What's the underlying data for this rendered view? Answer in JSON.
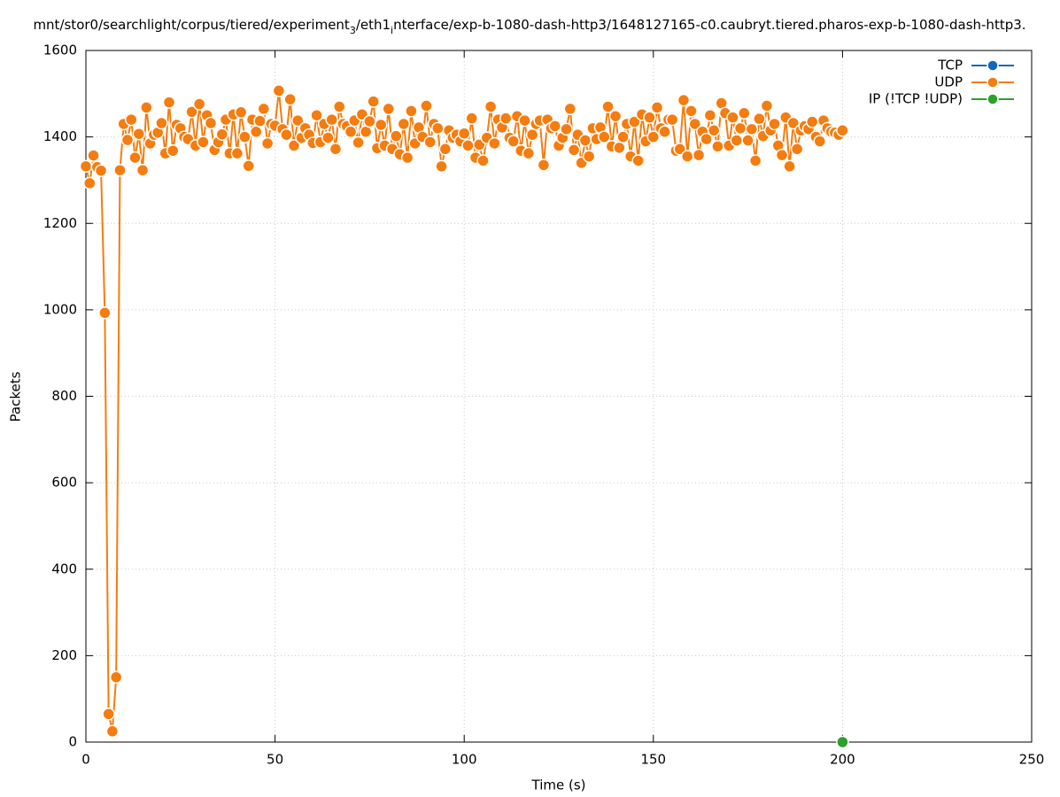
{
  "chart_data": {
    "type": "line",
    "title": [
      "mnt/stor0/searchlight/corpus/tiered/experiment",
      "3",
      "/eth1",
      "i",
      "nterface/exp-b-1080-dash-http3/1648127165-c0.caubryt.tiered.pharos-exp-b-1080-dash-http3."
    ],
    "xlabel": "Time (s)",
    "ylabel": "Packets",
    "xlim": [
      0,
      250
    ],
    "xticks": [
      0,
      50,
      100,
      150,
      200,
      250
    ],
    "ylim": [
      0,
      1600
    ],
    "yticks": [
      0,
      200,
      400,
      600,
      800,
      1000,
      1200,
      1400,
      1600
    ],
    "grid": true,
    "legend": "top-right",
    "series": [
      {
        "name": "TCP",
        "color": "#1565c0",
        "x": [],
        "values": []
      },
      {
        "name": "UDP",
        "color": "#f57c0e",
        "x": [
          0,
          1,
          2,
          3,
          4,
          5,
          6,
          7,
          8,
          9,
          10,
          11,
          12,
          13,
          14,
          15,
          16,
          17,
          18,
          19,
          20,
          21,
          22,
          23,
          24,
          25,
          26,
          27,
          28,
          29,
          30,
          31,
          32,
          33,
          34,
          35,
          36,
          37,
          38,
          39,
          40,
          41,
          42,
          43,
          44,
          45,
          46,
          47,
          48,
          49,
          50,
          51,
          52,
          53,
          54,
          55,
          56,
          57,
          58,
          59,
          60,
          61,
          62,
          63,
          64,
          65,
          66,
          67,
          68,
          69,
          70,
          71,
          72,
          73,
          74,
          75,
          76,
          77,
          78,
          79,
          80,
          81,
          82,
          83,
          84,
          85,
          86,
          87,
          88,
          89,
          90,
          91,
          92,
          93,
          94,
          95,
          96,
          97,
          98,
          99,
          100,
          101,
          102,
          103,
          104,
          105,
          106,
          107,
          108,
          109,
          110,
          111,
          112,
          113,
          114,
          115,
          116,
          117,
          118,
          119,
          120,
          121,
          122,
          123,
          124,
          125,
          126,
          127,
          128,
          129,
          130,
          131,
          132,
          133,
          134,
          135,
          136,
          137,
          138,
          139,
          140,
          141,
          142,
          143,
          144,
          145,
          146,
          147,
          148,
          149,
          150,
          151,
          152,
          153,
          154,
          155,
          156,
          157,
          158,
          159,
          160,
          161,
          162,
          163,
          164,
          165,
          166,
          167,
          168,
          169,
          170,
          171,
          172,
          173,
          174,
          175,
          176,
          177,
          178,
          179,
          180,
          181,
          182,
          183,
          184,
          185,
          186,
          187,
          188,
          189,
          190,
          191,
          192,
          193,
          194,
          195,
          196,
          197,
          198,
          199,
          200
        ],
        "values": [
          1332,
          1293,
          1357,
          1330,
          1322,
          993,
          65,
          25,
          150,
          1323,
          1430,
          1393,
          1440,
          1352,
          1407,
          1323,
          1468,
          1385,
          1405,
          1410,
          1432,
          1362,
          1480,
          1368,
          1428,
          1420,
          1400,
          1395,
          1458,
          1380,
          1476,
          1388,
          1450,
          1432,
          1370,
          1388,
          1406,
          1440,
          1362,
          1452,
          1362,
          1457,
          1400,
          1333,
          1440,
          1412,
          1437,
          1465,
          1385,
          1430,
          1426,
          1507,
          1418,
          1405,
          1487,
          1380,
          1438,
          1398,
          1420,
          1405,
          1386,
          1450,
          1388,
          1430,
          1398,
          1440,
          1372,
          1470,
          1430,
          1425,
          1412,
          1438,
          1387,
          1452,
          1412,
          1436,
          1482,
          1374,
          1428,
          1380,
          1465,
          1372,
          1402,
          1360,
          1430,
          1352,
          1460,
          1385,
          1422,
          1400,
          1472,
          1388,
          1430,
          1420,
          1332,
          1372,
          1415,
          1398,
          1405,
          1390,
          1408,
          1380,
          1443,
          1352,
          1382,
          1345,
          1398,
          1470,
          1385,
          1440,
          1422,
          1443,
          1398,
          1390,
          1448,
          1368,
          1438,
          1362,
          1405,
          1430,
          1438,
          1335,
          1440,
          1420,
          1425,
          1380,
          1398,
          1418,
          1465,
          1370,
          1405,
          1340,
          1392,
          1355,
          1420,
          1395,
          1422,
          1400,
          1470,
          1378,
          1448,
          1375,
          1400,
          1430,
          1355,
          1435,
          1345,
          1452,
          1390,
          1445,
          1400,
          1468,
          1420,
          1412,
          1440,
          1440,
          1368,
          1372,
          1485,
          1355,
          1460,
          1430,
          1358,
          1412,
          1395,
          1450,
          1415,
          1378,
          1478,
          1455,
          1380,
          1445,
          1392,
          1420,
          1455,
          1392,
          1418,
          1345,
          1442,
          1402,
          1472,
          1415,
          1430,
          1380,
          1358,
          1445,
          1332,
          1432,
          1372,
          1415,
          1425,
          1418,
          1435,
          1400,
          1390,
          1438,
          1420,
          1412,
          1410,
          1405,
          1415
        ]
      },
      {
        "name": "IP (!TCP  !UDP)",
        "color": "#2ca02c",
        "x": [
          200
        ],
        "values": [
          0
        ]
      }
    ]
  }
}
